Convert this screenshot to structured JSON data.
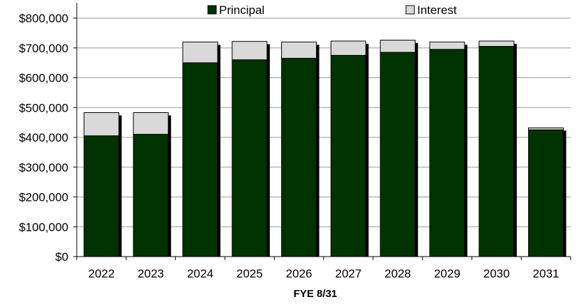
{
  "chart_data": {
    "type": "bar",
    "stacked": true,
    "title": "",
    "xlabel": "FYE 8/31",
    "ylabel": "",
    "categories": [
      "2022",
      "2023",
      "2024",
      "2025",
      "2026",
      "2027",
      "2028",
      "2029",
      "2030",
      "2031"
    ],
    "series": [
      {
        "name": "Principal",
        "color": "#003300",
        "values": [
          405000,
          410000,
          650000,
          660000,
          665000,
          675000,
          685000,
          695000,
          705000,
          425000
        ]
      },
      {
        "name": "Interest",
        "color": "#d9d9d9",
        "values": [
          78000,
          73000,
          70000,
          62000,
          55000,
          48000,
          41000,
          25000,
          18000,
          7000
        ]
      }
    ],
    "ylim": [
      0,
      800000
    ],
    "yticks": [
      "$0",
      "$100,000",
      "$200,000",
      "$300,000",
      "$400,000",
      "$500,000",
      "$600,000",
      "$700,000",
      "$800,000"
    ],
    "ytick_values": [
      0,
      100000,
      200000,
      300000,
      400000,
      500000,
      600000,
      700000,
      800000
    ],
    "grid": "horizontal",
    "legend_position": "top"
  }
}
